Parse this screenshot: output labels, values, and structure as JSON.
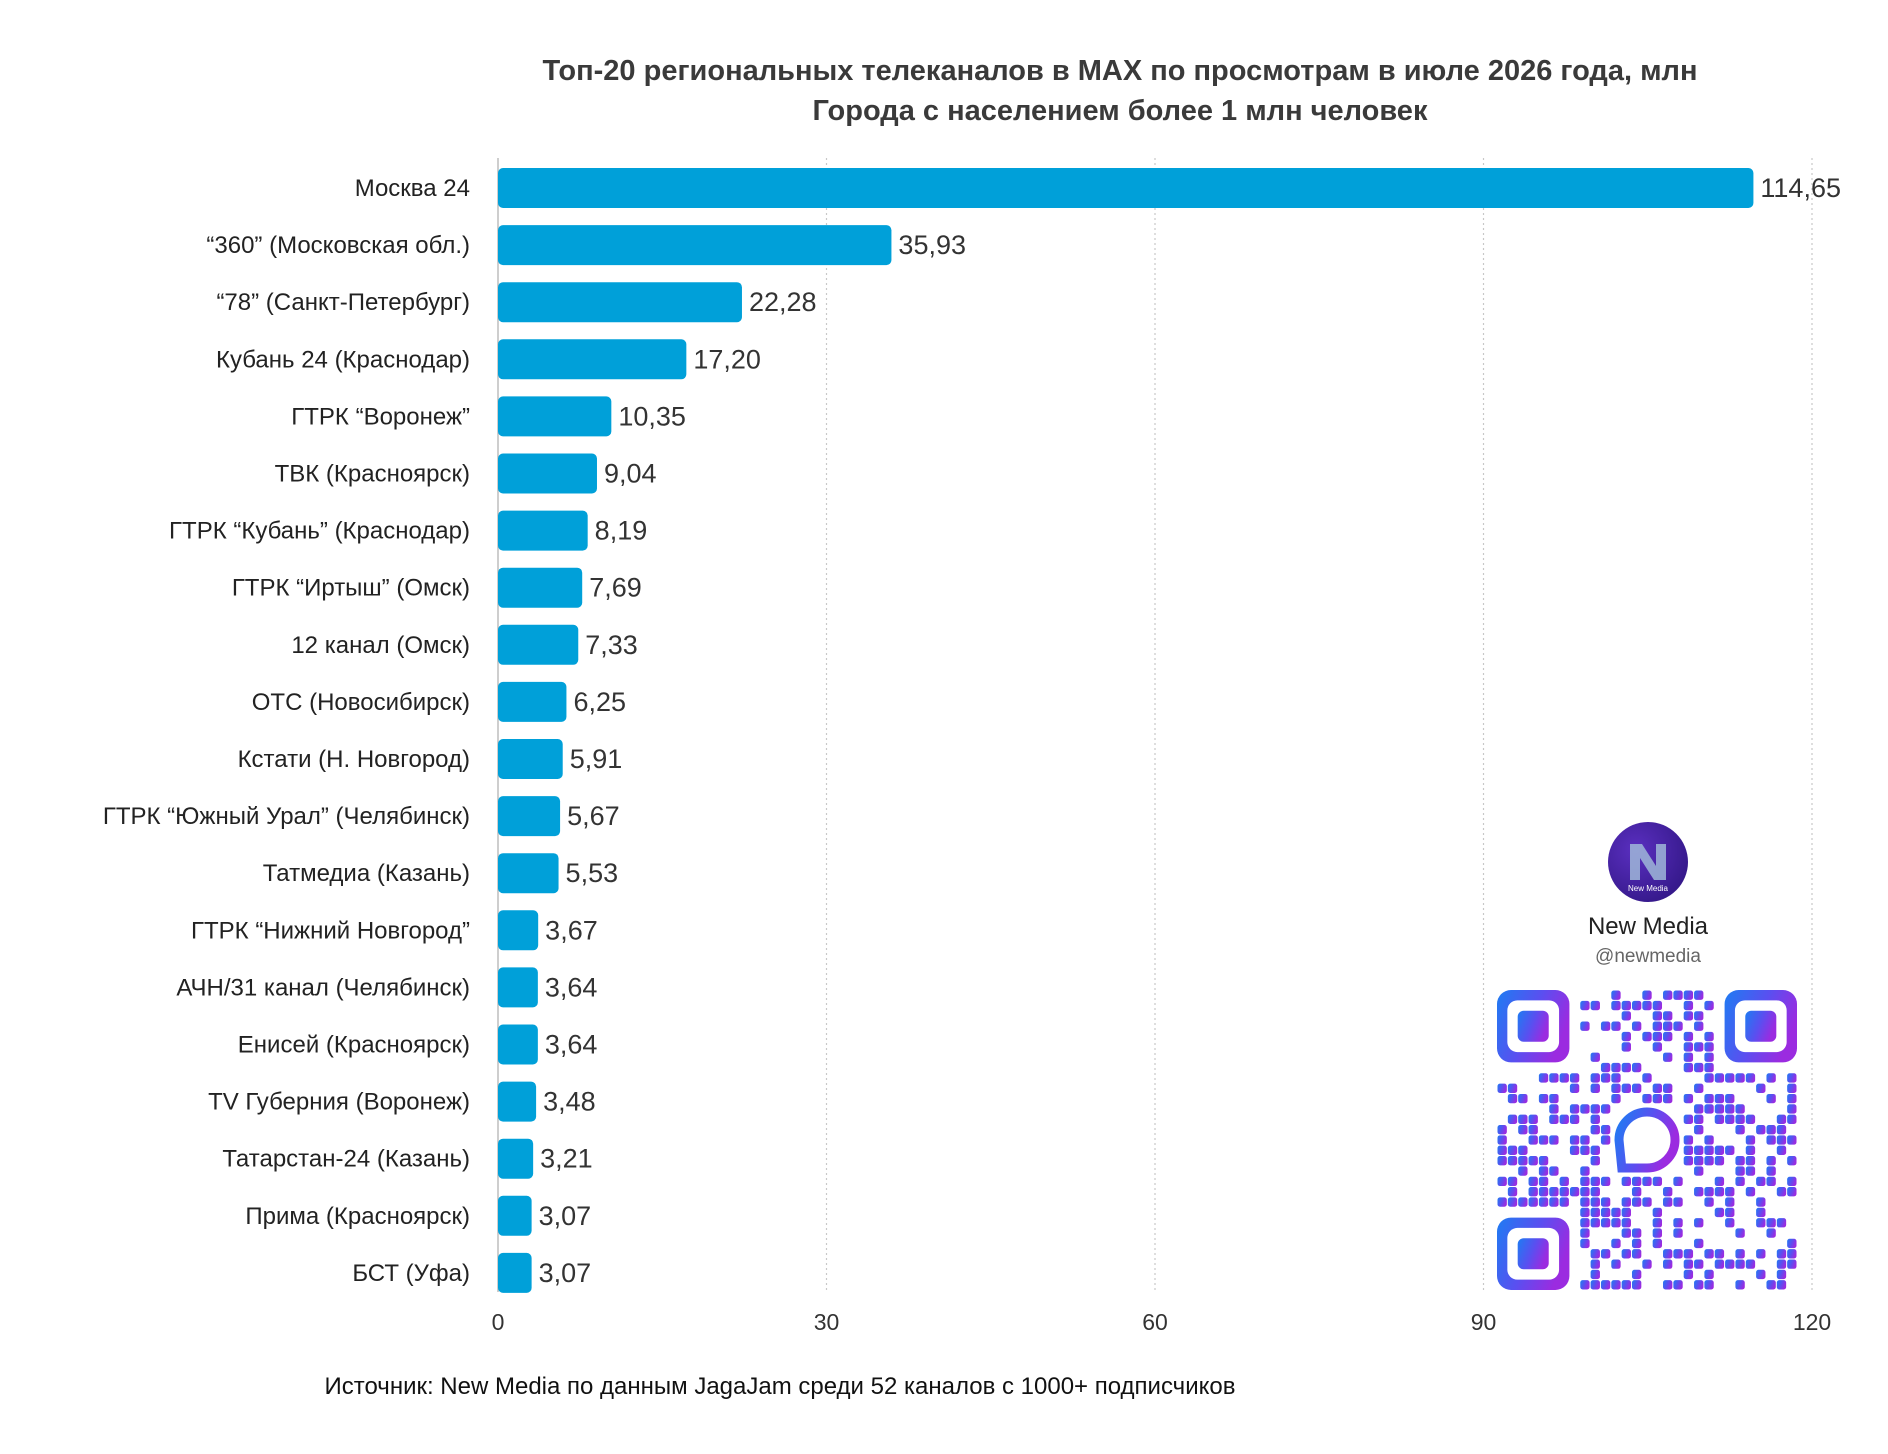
{
  "header": {
    "title": "Топ-20 региональных телеканалов в MAX по просмотрам в июле 2026 года, млн",
    "subtitle": "Города с населением более 1 млн человек"
  },
  "source": "Источник: New Media по данным JagaJam среди 52 каналов с 1000+ подписчиков",
  "brand": {
    "logo_text": "New Media",
    "name": "New Media",
    "handle": "@newmedia",
    "logo_icon": "new-media-logo-icon",
    "qr_icon": "qr-code-icon"
  },
  "colors": {
    "bar": "#00a0d9",
    "grid": "#c8c8c8",
    "text": "#222222"
  },
  "chart_data": {
    "type": "bar",
    "orientation": "horizontal",
    "title": "Топ-20 региональных телеканалов в MAX по просмотрам в июле 2026 года, млн",
    "subtitle": "Города с населением более 1 млн человек",
    "categories": [
      "Москва 24",
      "“360” (Московская обл.)",
      "“78” (Санкт-Петербург)",
      "Кубань 24 (Краснодар)",
      "ГТРК “Воронеж”",
      "ТВК (Красноярск)",
      "ГТРК “Кубань” (Краснодар)",
      "ГТРК “Иртыш” (Омск)",
      "12 канал (Омск)",
      "ОТС (Новосибирск)",
      "Кстати (Н. Новгород)",
      "ГТРК “Южный Урал” (Челябинск)",
      "Татмедиа (Казань)",
      "ГТРК “Нижний Новгород”",
      "АЧН/31 канал (Челябинск)",
      "Енисей (Красноярск)",
      "TV Губерния (Воронеж)",
      "Татарстан-24 (Казань)",
      "Прима (Красноярск)",
      "БСТ (Уфа)"
    ],
    "values": [
      114.65,
      35.93,
      22.28,
      17.2,
      10.35,
      9.04,
      8.19,
      7.69,
      7.33,
      6.25,
      5.91,
      5.67,
      5.53,
      3.67,
      3.64,
      3.64,
      3.48,
      3.21,
      3.07,
      3.07
    ],
    "value_labels": [
      "114,65",
      "35,93",
      "22,28",
      "17,20",
      "10,35",
      "9,04",
      "8,19",
      "7,69",
      "7,33",
      "6,25",
      "5,91",
      "5,67",
      "5,53",
      "3,67",
      "3,64",
      "3,64",
      "3,48",
      "3,21",
      "3,07",
      "3,07"
    ],
    "xlim": [
      0,
      120
    ],
    "xticks": [
      "0",
      "30",
      "60",
      "90",
      "120"
    ],
    "grid": "vertical dotted",
    "xlabel": "",
    "ylabel": ""
  }
}
